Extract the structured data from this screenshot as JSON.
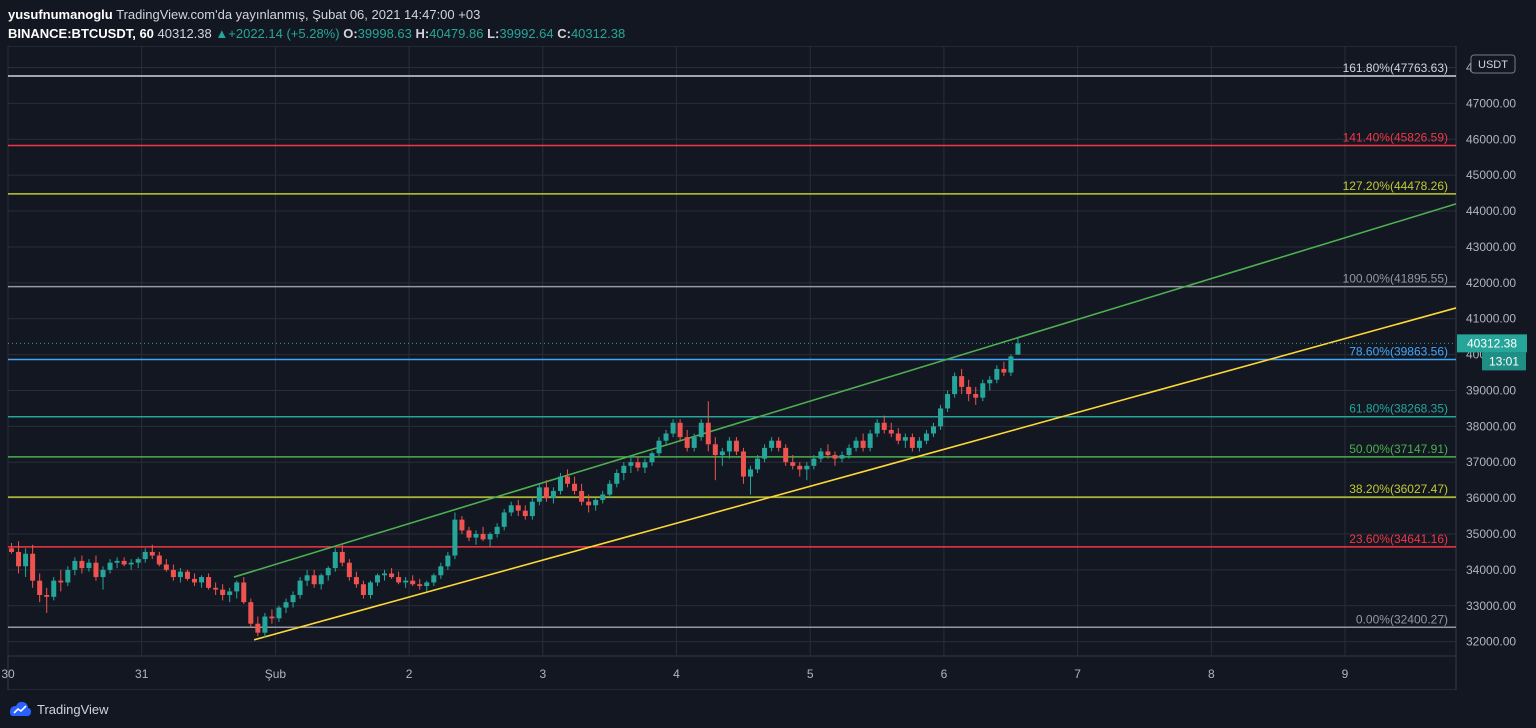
{
  "header": {
    "author": "yusufnumanoglu",
    "published_text": "TradingView.com'da yayınlanmış, Şubat 06, 2021 14:47:00 +03",
    "symbol": "BINANCE:BTCUSDT, 60",
    "last": "40312.38",
    "change": "+2022.14 (+5.28%)",
    "o_label": "O:",
    "o": "39998.63",
    "h_label": "H:",
    "h": "40479.86",
    "l_label": "L:",
    "l": "39992.64",
    "c_label": "C:",
    "c": "40312.38"
  },
  "footer": {
    "brand": "TradingView"
  },
  "chart_data": {
    "type": "candlestick",
    "currency": "USDT",
    "ylim": [
      31600,
      48600
    ],
    "y_ticks": [
      32000,
      33000,
      34000,
      35000,
      36000,
      37000,
      38000,
      39000,
      40000,
      41000,
      42000,
      43000,
      44000,
      45000,
      46000,
      47000,
      48000
    ],
    "y_tick_labels": [
      "32000.00",
      "33000.00",
      "34000.00",
      "35000.00",
      "36000.00",
      "37000.00",
      "38000.00",
      "39000.00",
      "40000.00",
      "41000.00",
      "42000.00",
      "43000.00",
      "44000.00",
      "45000.00",
      "46000.00",
      "47000.00",
      "48000.00"
    ],
    "x_ticks": [
      {
        "label": "30",
        "day": 0
      },
      {
        "label": "31",
        "day": 1
      },
      {
        "label": "Şub",
        "day": 2
      },
      {
        "label": "2",
        "day": 3
      },
      {
        "label": "3",
        "day": 4
      },
      {
        "label": "4",
        "day": 5
      },
      {
        "label": "5",
        "day": 6
      },
      {
        "label": "6",
        "day": 7
      },
      {
        "label": "7",
        "day": 8
      },
      {
        "label": "8",
        "day": 9
      },
      {
        "label": "9",
        "day": 10
      }
    ],
    "xlim": [
      0,
      10.83
    ],
    "last_price": 40312.38,
    "last_price_label": "40312.38",
    "countdown": "13:01",
    "fib_levels": [
      {
        "label": "161.80%(47763.63)",
        "value": 47763.63,
        "color": "#d1d4dc"
      },
      {
        "label": "141.40%(45826.59)",
        "value": 45826.59,
        "color": "#f23645"
      },
      {
        "label": "127.20%(44478.26)",
        "value": 44478.26,
        "color": "#c0ca33"
      },
      {
        "label": "100.00%(41895.55)",
        "value": 41895.55,
        "color": "#9598a1"
      },
      {
        "label": "78.60%(39863.56)",
        "value": 39863.56,
        "color": "#42a5f5"
      },
      {
        "label": "61.80%(38268.35)",
        "value": 38268.35,
        "color": "#26a69a"
      },
      {
        "label": "50.00%(37147.91)",
        "value": 37147.91,
        "color": "#4caf50"
      },
      {
        "label": "38.20%(36027.47)",
        "value": 36027.47,
        "color": "#c0ca33"
      },
      {
        "label": "23.60%(34641.16)",
        "value": 34641.16,
        "color": "#f23645"
      },
      {
        "label": "0.00%(32400.27)",
        "value": 32400.27,
        "color": "#9598a1"
      }
    ],
    "trendlines": [
      {
        "color": "#4caf50",
        "from": [
          1.69,
          33800
        ],
        "to": [
          10.83,
          44200
        ]
      },
      {
        "color": "#fdd835",
        "from": [
          1.84,
          32050
        ],
        "to": [
          10.83,
          41300
        ]
      }
    ],
    "candles": [
      [
        34600,
        34750,
        34450,
        34500
      ],
      [
        34500,
        34800,
        33900,
        34100
      ],
      [
        34100,
        34600,
        33800,
        34450
      ],
      [
        34450,
        34700,
        33500,
        33700
      ],
      [
        33700,
        33900,
        33100,
        33300
      ],
      [
        33300,
        33500,
        32800,
        33250
      ],
      [
        33250,
        33800,
        33150,
        33700
      ],
      [
        33700,
        34000,
        33400,
        33650
      ],
      [
        33650,
        34100,
        33550,
        34000
      ],
      [
        34000,
        34350,
        33850,
        34250
      ],
      [
        34250,
        34400,
        33900,
        34050
      ],
      [
        34050,
        34300,
        33950,
        34200
      ],
      [
        34200,
        34400,
        33700,
        33800
      ],
      [
        33800,
        34100,
        33450,
        34000
      ],
      [
        34000,
        34300,
        33900,
        34200
      ],
      [
        34200,
        34350,
        34050,
        34250
      ],
      [
        34250,
        34350,
        34100,
        34150
      ],
      [
        34150,
        34300,
        34000,
        34200
      ],
      [
        34200,
        34350,
        34050,
        34300
      ],
      [
        34300,
        34600,
        34200,
        34500
      ],
      [
        34500,
        34700,
        34300,
        34400
      ],
      [
        34400,
        34500,
        34100,
        34150
      ],
      [
        34150,
        34300,
        33950,
        34000
      ],
      [
        34000,
        34150,
        33700,
        33800
      ],
      [
        33800,
        34050,
        33650,
        33950
      ],
      [
        33950,
        34000,
        33700,
        33750
      ],
      [
        33750,
        33900,
        33550,
        33650
      ],
      [
        33650,
        33850,
        33500,
        33800
      ],
      [
        33800,
        33900,
        33450,
        33500
      ],
      [
        33500,
        33650,
        33300,
        33450
      ],
      [
        33450,
        33600,
        33150,
        33300
      ],
      [
        33300,
        33500,
        33100,
        33400
      ],
      [
        33400,
        33700,
        33200,
        33650
      ],
      [
        33650,
        33800,
        33050,
        33100
      ],
      [
        33100,
        33200,
        32400,
        32500
      ],
      [
        32500,
        32700,
        32150,
        32250
      ],
      [
        32250,
        32800,
        32100,
        32700
      ],
      [
        32700,
        32900,
        32500,
        32650
      ],
      [
        32650,
        33000,
        32550,
        32950
      ],
      [
        32950,
        33200,
        32800,
        33100
      ],
      [
        33100,
        33400,
        32950,
        33300
      ],
      [
        33300,
        33800,
        33200,
        33700
      ],
      [
        33700,
        34000,
        33550,
        33850
      ],
      [
        33850,
        34000,
        33500,
        33600
      ],
      [
        33600,
        33900,
        33450,
        33850
      ],
      [
        33850,
        34100,
        33700,
        34050
      ],
      [
        34050,
        34600,
        33950,
        34500
      ],
      [
        34500,
        34700,
        34100,
        34200
      ],
      [
        34200,
        34300,
        33700,
        33800
      ],
      [
        33800,
        33950,
        33500,
        33600
      ],
      [
        33600,
        33700,
        33200,
        33300
      ],
      [
        33300,
        33700,
        33200,
        33650
      ],
      [
        33650,
        33900,
        33550,
        33850
      ],
      [
        33850,
        34000,
        33700,
        33900
      ],
      [
        33900,
        34050,
        33750,
        33800
      ],
      [
        33800,
        33950,
        33600,
        33650
      ],
      [
        33650,
        33800,
        33500,
        33700
      ],
      [
        33700,
        33850,
        33550,
        33600
      ],
      [
        33600,
        33750,
        33450,
        33550
      ],
      [
        33550,
        33700,
        33400,
        33650
      ],
      [
        33650,
        33900,
        33550,
        33850
      ],
      [
        33850,
        34200,
        33750,
        34100
      ],
      [
        34100,
        34500,
        34000,
        34400
      ],
      [
        34400,
        35600,
        34300,
        35400
      ],
      [
        35400,
        35500,
        35000,
        35100
      ],
      [
        35100,
        35200,
        34800,
        34900
      ],
      [
        34900,
        35100,
        34700,
        35000
      ],
      [
        35000,
        35200,
        34800,
        34850
      ],
      [
        34850,
        35050,
        34650,
        35000
      ],
      [
        35000,
        35300,
        34900,
        35200
      ],
      [
        35200,
        35700,
        35100,
        35600
      ],
      [
        35600,
        35900,
        35500,
        35800
      ],
      [
        35800,
        35950,
        35500,
        35650
      ],
      [
        35650,
        35800,
        35400,
        35500
      ],
      [
        35500,
        36000,
        35400,
        35900
      ],
      [
        35900,
        36400,
        35800,
        36300
      ],
      [
        36300,
        36500,
        35900,
        36000
      ],
      [
        36000,
        36300,
        35850,
        36200
      ],
      [
        36200,
        36700,
        36100,
        36600
      ],
      [
        36600,
        36800,
        36300,
        36400
      ],
      [
        36400,
        36600,
        36100,
        36200
      ],
      [
        36200,
        36400,
        35800,
        35900
      ],
      [
        35900,
        36100,
        35600,
        35800
      ],
      [
        35800,
        36000,
        35650,
        35950
      ],
      [
        35950,
        36200,
        35850,
        36100
      ],
      [
        36100,
        36500,
        36000,
        36400
      ],
      [
        36400,
        36800,
        36300,
        36700
      ],
      [
        36700,
        37000,
        36500,
        36900
      ],
      [
        36900,
        37200,
        36700,
        37000
      ],
      [
        37000,
        37150,
        36750,
        36850
      ],
      [
        36850,
        37100,
        36700,
        37000
      ],
      [
        37000,
        37300,
        36900,
        37250
      ],
      [
        37250,
        37700,
        37150,
        37600
      ],
      [
        37600,
        37900,
        37500,
        37800
      ],
      [
        37800,
        38200,
        37700,
        38100
      ],
      [
        38100,
        38200,
        37600,
        37700
      ],
      [
        37700,
        37900,
        37300,
        37400
      ],
      [
        37400,
        37800,
        37300,
        37700
      ],
      [
        37700,
        38200,
        37600,
        38100
      ],
      [
        38100,
        38700,
        37300,
        37500
      ],
      [
        37500,
        37700,
        36500,
        37200
      ],
      [
        37200,
        37400,
        36900,
        37300
      ],
      [
        37300,
        37700,
        37100,
        37600
      ],
      [
        37600,
        37700,
        37200,
        37300
      ],
      [
        37300,
        37400,
        36400,
        36600
      ],
      [
        36600,
        36900,
        36100,
        36800
      ],
      [
        36800,
        37200,
        36700,
        37100
      ],
      [
        37100,
        37500,
        37000,
        37400
      ],
      [
        37400,
        37700,
        37300,
        37600
      ],
      [
        37600,
        37700,
        37300,
        37400
      ],
      [
        37400,
        37500,
        36900,
        37000
      ],
      [
        37000,
        37200,
        36800,
        36900
      ],
      [
        36900,
        37000,
        36600,
        36800
      ],
      [
        36800,
        37000,
        36500,
        36900
      ],
      [
        36900,
        37200,
        36800,
        37100
      ],
      [
        37100,
        37400,
        37000,
        37300
      ],
      [
        37300,
        37500,
        37100,
        37200
      ],
      [
        37200,
        37300,
        36900,
        37100
      ],
      [
        37100,
        37300,
        37000,
        37200
      ],
      [
        37200,
        37500,
        37100,
        37400
      ],
      [
        37400,
        37700,
        37300,
        37600
      ],
      [
        37600,
        37800,
        37300,
        37400
      ],
      [
        37400,
        37900,
        37300,
        37800
      ],
      [
        37800,
        38200,
        37700,
        38100
      ],
      [
        38100,
        38300,
        37800,
        37900
      ],
      [
        37900,
        38100,
        37700,
        37800
      ],
      [
        37800,
        37950,
        37500,
        37600
      ],
      [
        37600,
        37800,
        37400,
        37700
      ],
      [
        37700,
        37800,
        37300,
        37400
      ],
      [
        37400,
        37700,
        37300,
        37600
      ],
      [
        37600,
        37900,
        37500,
        37800
      ],
      [
        37800,
        38100,
        37700,
        38000
      ],
      [
        38000,
        38600,
        37900,
        38500
      ],
      [
        38500,
        39000,
        38400,
        38900
      ],
      [
        38900,
        39500,
        38800,
        39400
      ],
      [
        39400,
        39600,
        38900,
        39100
      ],
      [
        39100,
        39300,
        38700,
        38900
      ],
      [
        38900,
        39100,
        38600,
        38800
      ],
      [
        38800,
        39300,
        38700,
        39200
      ],
      [
        39200,
        39400,
        39000,
        39300
      ],
      [
        39300,
        39700,
        39200,
        39600
      ],
      [
        39600,
        39800,
        39400,
        39500
      ],
      [
        39500,
        40000,
        39400,
        39950
      ],
      [
        39998.63,
        40479.86,
        39992.64,
        40312.38
      ]
    ]
  }
}
